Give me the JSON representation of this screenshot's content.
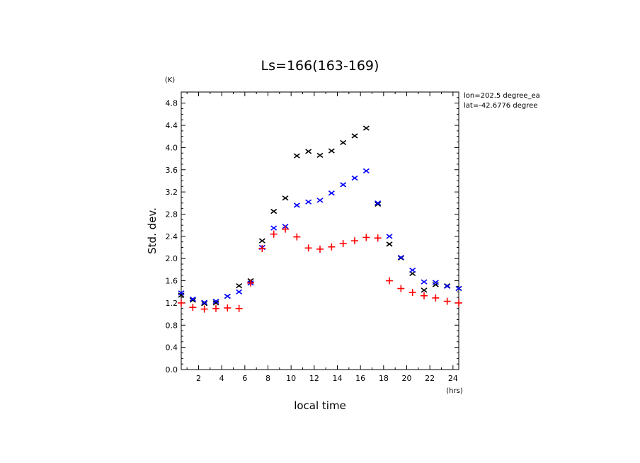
{
  "chart_data": {
    "type": "scatter",
    "title": "Ls=166(163-169)",
    "xlabel": "local time",
    "ylabel": "Std. dev.",
    "x_unit": "(hrs)",
    "y_unit": "(K)",
    "xlim": [
      0.5,
      24.5
    ],
    "ylim": [
      0.0,
      5.0
    ],
    "x_ticks": [
      "2",
      "4",
      "6",
      "8",
      "10",
      "12",
      "14",
      "16",
      "18",
      "20",
      "22",
      "24"
    ],
    "y_ticks": [
      "0.0",
      "0.4",
      "0.8",
      "1.2",
      "1.6",
      "2.0",
      "2.4",
      "2.8",
      "3.2",
      "3.6",
      "4.0",
      "4.4",
      "4.8"
    ],
    "annotations": [
      "lon=202.5 degree_ea",
      "lat=-42.6776 degree"
    ],
    "series": [
      {
        "marker": "x",
        "color": "#000000",
        "x": [
          0.5,
          1.5,
          2.5,
          3.5,
          4.5,
          5.5,
          6.5,
          7.5,
          8.5,
          9.5,
          10.5,
          11.5,
          12.5,
          13.5,
          14.5,
          15.5,
          16.5,
          17.5,
          18.5,
          19.5,
          20.5,
          21.5,
          22.5,
          23.5,
          24.5
        ],
        "y": [
          1.34,
          1.25,
          1.19,
          1.2,
          1.32,
          1.51,
          1.6,
          2.32,
          2.85,
          3.09,
          3.85,
          3.93,
          3.86,
          3.94,
          4.09,
          4.21,
          4.35,
          2.98,
          2.26,
          2.01,
          1.73,
          1.43,
          1.53,
          1.51,
          1.46
        ]
      },
      {
        "marker": "x",
        "color": "#0000ff",
        "x": [
          0.5,
          1.5,
          2.5,
          3.5,
          4.5,
          5.5,
          6.5,
          7.5,
          8.5,
          9.5,
          10.5,
          11.5,
          12.5,
          13.5,
          14.5,
          15.5,
          16.5,
          17.5,
          18.5,
          19.5,
          20.5,
          21.5,
          22.5,
          23.5,
          24.5
        ],
        "y": [
          1.38,
          1.27,
          1.21,
          1.23,
          1.32,
          1.4,
          1.56,
          2.2,
          2.55,
          2.58,
          2.96,
          3.02,
          3.05,
          3.18,
          3.33,
          3.45,
          3.58,
          3.0,
          2.4,
          2.02,
          1.79,
          1.58,
          1.57,
          1.5,
          1.46
        ]
      },
      {
        "marker": "+",
        "color": "#ff0000",
        "x": [
          0.5,
          1.5,
          2.5,
          3.5,
          4.5,
          5.5,
          6.5,
          7.5,
          8.5,
          9.5,
          10.5,
          11.5,
          12.5,
          13.5,
          14.5,
          15.5,
          16.5,
          17.5,
          18.5,
          19.5,
          20.5,
          21.5,
          22.5,
          23.5,
          24.5
        ],
        "y": [
          1.2,
          1.12,
          1.09,
          1.1,
          1.11,
          1.1,
          1.56,
          2.18,
          2.44,
          2.53,
          2.39,
          2.19,
          2.17,
          2.21,
          2.27,
          2.32,
          2.38,
          2.37,
          1.6,
          1.46,
          1.39,
          1.33,
          1.29,
          1.23,
          1.2
        ]
      }
    ]
  }
}
